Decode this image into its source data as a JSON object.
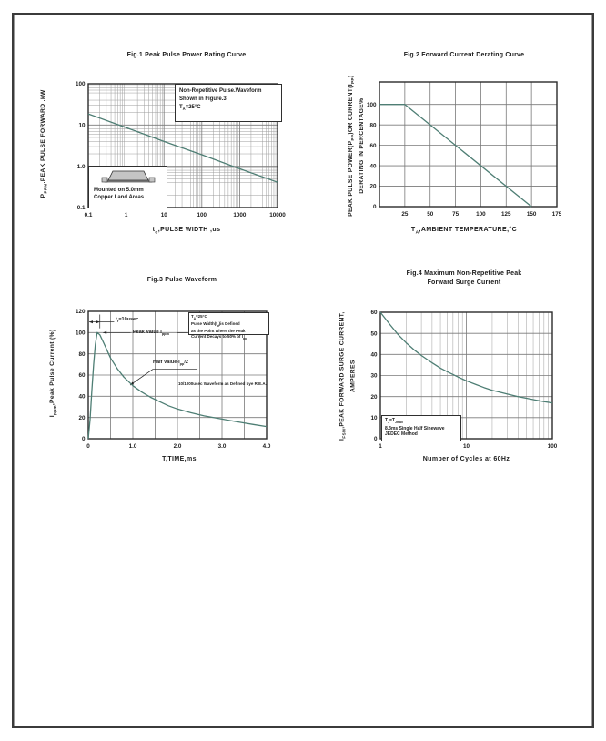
{
  "colors": {
    "curve": "#4e7e74",
    "grid_major": "#7a7a7a",
    "grid_minor": "#9d9d9d",
    "axis_border": "#2b2b2b",
    "text": "#1b1b1b",
    "mark": "#222222",
    "package_fill": "#c4c4c4"
  },
  "figures": {
    "fig1": {
      "title": "Fig.1  Peak Pulse Power Rating Curve",
      "ylabel": "P~PPM~,PEAK PULSE FORWARD ,kW",
      "xlabel": "t~d~,PULSE WIDTH ,us",
      "note_lines": [
        "Non-Repetitive  Pulse.Waveform",
        "Shown in Figure.3",
        "T~A~=25°C"
      ],
      "inset_lines": [
        "Mounted on 5.0mm",
        "Copper Land Areas"
      ],
      "package_icon": "smd-diode-package"
    },
    "fig2": {
      "title": "Fig.2  Forward Current Derating Curve",
      "ylabel_lines": [
        "PEAK PULSE POWER(P~PP~)OR CURRENT(I~PP~)",
        "DERATING IN PERCENTAGE%"
      ],
      "xlabel": "T~A~,AMBIENT TEMPERATURE,°C"
    },
    "fig3": {
      "title": "Fig.3  Pulse Waveform",
      "ylabel": "I~ppm~,Peak Pulse Current (%)",
      "xlabel": "T,TIME,ms",
      "note_lines": [
        "T~A~=25°C",
        "Pulse Width(t~d~)is Defined",
        "as the Point where the Peak",
        "Current Decays to 50% of I~pp~"
      ],
      "ann_rise_time": "t~r~=10usec",
      "ann_peak": "Peak  Value   I~ppm~",
      "ann_half": "Half  Value-I~pp~/2",
      "ann_rea": "10/1000usec  Waveform as Defined bye R.E.A."
    },
    "fig4": {
      "title_lines": [
        "Fig.4  Maximum Non-Repetitive Peak",
        "Forward Surge Current"
      ],
      "ylabel_lines": [
        "I~FSM~,PEAK FORWARD SURGE CURRENT,",
        "AMPERES"
      ],
      "xlabel": "Number of Cycles at 60Hz",
      "note_lines": [
        "T~J~=T~Jmax~",
        "8.3ms Single Half  Sinewave",
        "JEDEC Method"
      ]
    }
  },
  "chart_data": [
    {
      "id": "fig1",
      "type": "line",
      "title": "Fig.1 Peak Pulse Power Rating Curve",
      "xlabel": "td, PULSE WIDTH, us",
      "ylabel": "PPPM, PEAK PULSE FORWARD, kW",
      "xscale": "log",
      "yscale": "log",
      "xlim": [
        0.1,
        10000
      ],
      "ylim": [
        0.1,
        100
      ],
      "xminor": true,
      "yminor": true,
      "xgrid": [
        1,
        10,
        100,
        1000
      ],
      "ygrid": [
        1,
        10
      ],
      "xticks": [
        {
          "v": 0.1,
          "t": "0.1"
        },
        {
          "v": 1,
          "t": "1"
        },
        {
          "v": 10,
          "t": "10"
        },
        {
          "v": 100,
          "t": "100"
        },
        {
          "v": 1000,
          "t": "1000"
        },
        {
          "v": 10000,
          "t": "10000"
        }
      ],
      "yticks": [
        {
          "v": 0.1,
          "t": "0.1"
        },
        {
          "v": 1,
          "t": "1.0"
        },
        {
          "v": 10,
          "t": "10"
        },
        {
          "v": 100,
          "t": "100"
        }
      ],
      "legend": "none",
      "grid": "on",
      "series": [
        {
          "name": "peak pulse power",
          "points": [
            [
              0.1,
              18.6
            ],
            [
              1,
              8.7
            ],
            [
              10,
              4.0
            ],
            [
              100,
              1.9
            ],
            [
              1000,
              0.87
            ],
            [
              10000,
              0.41
            ]
          ]
        }
      ],
      "annotations": [
        "Non-Repetitive Pulse. Waveform Shown in Figure.3  TA=25C",
        "Mounted on 5.0mm Copper Land Areas"
      ]
    },
    {
      "id": "fig2",
      "type": "line",
      "title": "Fig.2 Forward Current Derating Curve",
      "xlabel": "TA, AMBIENT TEMPERATURE, C",
      "ylabel": "PEAK PULSE POWER(PPP) OR CURRENT(IPP) DERATING IN PERCENTAGE%",
      "xscale": "linear",
      "yscale": "linear",
      "xlim": [
        0,
        175
      ],
      "ylim": [
        0,
        122
      ],
      "xminor": false,
      "yminor": false,
      "xgrid": [
        25,
        50,
        75,
        100,
        125,
        150
      ],
      "ygrid": [
        20,
        40,
        60,
        80,
        100
      ],
      "xticks": [
        {
          "v": 25,
          "t": "25"
        },
        {
          "v": 50,
          "t": "50"
        },
        {
          "v": 75,
          "t": "75"
        },
        {
          "v": 100,
          "t": "100"
        },
        {
          "v": 125,
          "t": "125"
        },
        {
          "v": 150,
          "t": "150"
        },
        {
          "v": 175,
          "t": "175"
        }
      ],
      "yticks": [
        {
          "v": 0,
          "t": "0"
        },
        {
          "v": 20,
          "t": "20"
        },
        {
          "v": 40,
          "t": "40"
        },
        {
          "v": 60,
          "t": "60"
        },
        {
          "v": 80,
          "t": "80"
        },
        {
          "v": 100,
          "t": "100"
        }
      ],
      "legend": "none",
      "grid": "on",
      "series": [
        {
          "name": "derating",
          "points": [
            [
              0,
              100
            ],
            [
              25,
              100
            ],
            [
              150,
              0
            ]
          ]
        }
      ]
    },
    {
      "id": "fig3",
      "type": "line",
      "title": "Fig.3 Pulse Waveform",
      "xlabel": "T, TIME, ms",
      "ylabel": "Ippm, Peak Pulse Current (%)",
      "xscale": "linear",
      "yscale": "linear",
      "xlim": [
        0,
        4
      ],
      "ylim": [
        0,
        120
      ],
      "xminor": false,
      "yminor": false,
      "xgrid": [
        0.5,
        1,
        1.5,
        2,
        2.5,
        3,
        3.5
      ],
      "ygrid": [
        20,
        40,
        60,
        80,
        100
      ],
      "xticks": [
        {
          "v": 0,
          "t": "0"
        },
        {
          "v": 1,
          "t": "1.0"
        },
        {
          "v": 2,
          "t": "2.0"
        },
        {
          "v": 3,
          "t": "3.0"
        },
        {
          "v": 4,
          "t": "4.0"
        }
      ],
      "yticks": [
        {
          "v": 0,
          "t": "0"
        },
        {
          "v": 20,
          "t": "20"
        },
        {
          "v": 40,
          "t": "40"
        },
        {
          "v": 60,
          "t": "60"
        },
        {
          "v": 80,
          "t": "80"
        },
        {
          "v": 100,
          "t": "100"
        },
        {
          "v": 120,
          "t": "120"
        }
      ],
      "legend": "none",
      "grid": "on",
      "series": [
        {
          "name": "10/1000us waveform",
          "points": [
            [
              0,
              0
            ],
            [
              0.04,
              18
            ],
            [
              0.08,
              45
            ],
            [
              0.12,
              70
            ],
            [
              0.16,
              89
            ],
            [
              0.2,
              100
            ],
            [
              0.26,
              98
            ],
            [
              0.35,
              90
            ],
            [
              0.5,
              76
            ],
            [
              0.65,
              66
            ],
            [
              0.8,
              58
            ],
            [
              1.0,
              50
            ],
            [
              1.2,
              44
            ],
            [
              1.4,
              39
            ],
            [
              1.6,
              35
            ],
            [
              1.8,
              31
            ],
            [
              2.0,
              28
            ],
            [
              2.3,
              24.5
            ],
            [
              2.6,
              21.5
            ],
            [
              3.0,
              18.5
            ],
            [
              3.4,
              15.5
            ],
            [
              3.7,
              13.5
            ],
            [
              4.0,
              11.5
            ]
          ]
        }
      ],
      "marks": [
        {
          "x1": 0.02,
          "y1": 110,
          "x2": 0.26,
          "y2": 110,
          "a1": true,
          "a2": true
        },
        {
          "x1": 0.26,
          "y1": 104,
          "x2": 0.26,
          "y2": 117
        },
        {
          "x1": 0.26,
          "y1": 110,
          "x2": 0.58,
          "y2": 110
        },
        {
          "x1": 0.33,
          "y1": 100,
          "x2": 0.95,
          "y2": 100,
          "a1": true
        },
        {
          "x1": 1.98,
          "y1": 100,
          "x2": 2.24,
          "y2": 100
        },
        {
          "x1": 0.94,
          "y1": 50.5,
          "x2": 1.45,
          "y2": 65.5,
          "a1": true
        },
        {
          "x1": 1.45,
          "y1": 65.5,
          "x2": 2.45,
          "y2": 65.5
        }
      ],
      "annotations": [
        "tr=10usec",
        "Peak Value Ippm",
        "Half Value-Ipp/2",
        "10/1000usec Waveform as Defined bye R.E.A.",
        "TA=25C  Pulse Width(td) is Defined as the Point where the Peak Current Decays to 50% of Ipp"
      ]
    },
    {
      "id": "fig4",
      "type": "line",
      "title": "Fig.4 Maximum Non-Repetitive Peak Forward Surge Current",
      "xlabel": "Number of Cycles at 60Hz",
      "ylabel": "IFSM, PEAK FORWARD SURGE CURRENT, AMPERES",
      "xscale": "log",
      "yscale": "linear",
      "xlim": [
        1,
        100
      ],
      "ylim": [
        0,
        60
      ],
      "xminor": true,
      "yminor": false,
      "xgrid": [
        10
      ],
      "ygrid": [
        10,
        20,
        30,
        40,
        50
      ],
      "xticks": [
        {
          "v": 1,
          "t": "1"
        },
        {
          "v": 10,
          "t": "10"
        },
        {
          "v": 100,
          "t": "100"
        }
      ],
      "yticks": [
        {
          "v": 0,
          "t": "0"
        },
        {
          "v": 10,
          "t": "10"
        },
        {
          "v": 20,
          "t": "20"
        },
        {
          "v": 30,
          "t": "30"
        },
        {
          "v": 40,
          "t": "40"
        },
        {
          "v": 50,
          "t": "50"
        },
        {
          "v": 60,
          "t": "60"
        }
      ],
      "legend": "none",
      "grid": "on",
      "series": [
        {
          "name": "surge current",
          "points": [
            [
              1,
              60
            ],
            [
              1.3,
              54
            ],
            [
              1.6,
              49.5
            ],
            [
              2,
              45.5
            ],
            [
              2.5,
              42
            ],
            [
              3,
              39.5
            ],
            [
              4,
              36
            ],
            [
              5,
              33.5
            ],
            [
              6,
              31.8
            ],
            [
              8,
              29.3
            ],
            [
              10,
              27.5
            ],
            [
              13,
              25.7
            ],
            [
              16,
              24.3
            ],
            [
              20,
              23
            ],
            [
              25,
              22
            ],
            [
              30,
              21.2
            ],
            [
              40,
              20
            ],
            [
              50,
              19.2
            ],
            [
              65,
              18.3
            ],
            [
              80,
              17.6
            ],
            [
              100,
              17
            ]
          ]
        }
      ],
      "annotations": [
        "TJ=TJmax  8.3ms Single Half Sinewave  JEDEC Method"
      ]
    }
  ]
}
